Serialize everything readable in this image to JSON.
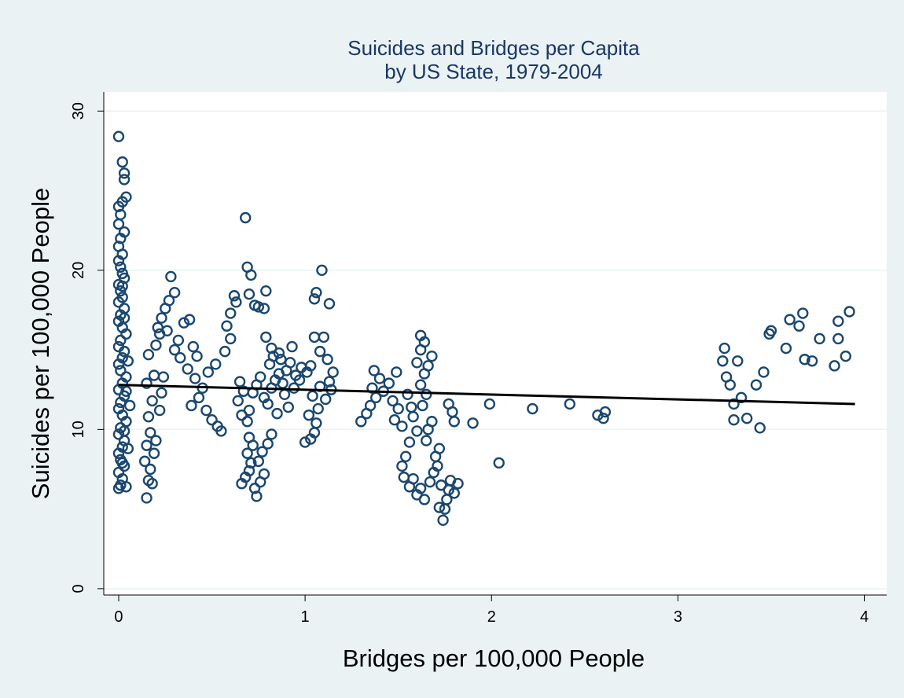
{
  "chart_data": {
    "type": "scatter",
    "title": [
      "Suicides and Bridges per Capita",
      "by US State, 1979-2004"
    ],
    "xlabel": "Bridges per 100,000 People",
    "ylabel": "Suicides per 100,000 People",
    "xlim": [
      -0.08,
      4.12
    ],
    "ylim": [
      -0.4,
      31.2
    ],
    "xticks": [
      0,
      1,
      2,
      3,
      4
    ],
    "yticks": [
      0,
      10,
      20,
      30
    ],
    "grid": "horizontal",
    "legend": "none",
    "colors": {
      "background": "#eaf2f3",
      "plot": "#ffffff",
      "marker": "#1a476f",
      "fit_line": "#000000",
      "grid": "#eaf2f3",
      "title": "#1a3765"
    },
    "fit_line": {
      "x": [
        0,
        3.95
      ],
      "y": [
        12.8,
        11.6
      ]
    },
    "series": [
      {
        "marker": "hollow-circle",
        "points": [
          [
            0.0,
            28.4
          ],
          [
            0.02,
            26.8
          ],
          [
            0.03,
            26.1
          ],
          [
            0.03,
            25.7
          ],
          [
            0.04,
            24.6
          ],
          [
            0.02,
            24.3
          ],
          [
            0.0,
            24.0
          ],
          [
            0.01,
            23.5
          ],
          [
            0.0,
            22.9
          ],
          [
            0.03,
            22.4
          ],
          [
            0.01,
            22.0
          ],
          [
            0.0,
            21.5
          ],
          [
            0.02,
            21.0
          ],
          [
            0.0,
            20.6
          ],
          [
            0.01,
            20.2
          ],
          [
            0.02,
            19.8
          ],
          [
            0.03,
            19.5
          ],
          [
            0.0,
            19.1
          ],
          [
            0.01,
            18.7
          ],
          [
            0.02,
            18.3
          ],
          [
            0.0,
            18.0
          ],
          [
            0.03,
            17.6
          ],
          [
            0.01,
            17.2
          ],
          [
            0.0,
            16.8
          ],
          [
            0.02,
            16.4
          ],
          [
            0.04,
            16.0
          ],
          [
            0.01,
            15.6
          ],
          [
            0.0,
            15.2
          ],
          [
            0.03,
            14.9
          ],
          [
            0.02,
            14.5
          ],
          [
            0.0,
            14.1
          ],
          [
            0.01,
            13.7
          ],
          [
            0.04,
            13.3
          ],
          [
            0.02,
            12.9
          ],
          [
            0.0,
            12.5
          ],
          [
            0.03,
            12.1
          ],
          [
            0.01,
            11.7
          ],
          [
            0.0,
            11.3
          ],
          [
            0.02,
            10.9
          ],
          [
            0.04,
            10.5
          ],
          [
            0.01,
            10.1
          ],
          [
            0.0,
            9.7
          ],
          [
            0.03,
            9.3
          ],
          [
            0.02,
            8.9
          ],
          [
            0.0,
            8.5
          ],
          [
            0.01,
            8.1
          ],
          [
            0.03,
            7.7
          ],
          [
            0.0,
            7.3
          ],
          [
            0.02,
            6.9
          ],
          [
            0.01,
            6.5
          ],
          [
            0.0,
            6.3
          ],
          [
            0.04,
            6.4
          ],
          [
            0.02,
            7.9
          ],
          [
            0.03,
            9.9
          ],
          [
            0.04,
            12.4
          ],
          [
            0.05,
            14.3
          ],
          [
            0.06,
            11.5
          ],
          [
            0.05,
            8.8
          ],
          [
            0.03,
            17.0
          ],
          [
            0.02,
            19.0
          ],
          [
            0.15,
            5.7
          ],
          [
            0.16,
            6.8
          ],
          [
            0.18,
            6.6
          ],
          [
            0.17,
            7.5
          ],
          [
            0.14,
            8.0
          ],
          [
            0.19,
            8.5
          ],
          [
            0.15,
            9.0
          ],
          [
            0.2,
            9.3
          ],
          [
            0.17,
            9.8
          ],
          [
            0.16,
            10.8
          ],
          [
            0.22,
            11.2
          ],
          [
            0.18,
            11.8
          ],
          [
            0.23,
            12.3
          ],
          [
            0.15,
            12.9
          ],
          [
            0.19,
            13.4
          ],
          [
            0.24,
            13.3
          ],
          [
            0.16,
            14.7
          ],
          [
            0.2,
            15.3
          ],
          [
            0.22,
            16.0
          ],
          [
            0.21,
            16.4
          ],
          [
            0.23,
            17.0
          ],
          [
            0.25,
            17.6
          ],
          [
            0.27,
            18.1
          ],
          [
            0.3,
            18.6
          ],
          [
            0.28,
            19.6
          ],
          [
            0.26,
            16.2
          ],
          [
            0.3,
            15.0
          ],
          [
            0.33,
            14.5
          ],
          [
            0.32,
            15.6
          ],
          [
            0.35,
            16.7
          ],
          [
            0.38,
            16.9
          ],
          [
            0.4,
            15.2
          ],
          [
            0.42,
            14.6
          ],
          [
            0.37,
            13.8
          ],
          [
            0.41,
            13.2
          ],
          [
            0.45,
            12.6
          ],
          [
            0.43,
            12.0
          ],
          [
            0.39,
            11.5
          ],
          [
            0.47,
            11.2
          ],
          [
            0.5,
            10.6
          ],
          [
            0.53,
            10.2
          ],
          [
            0.55,
            9.9
          ],
          [
            0.48,
            13.6
          ],
          [
            0.52,
            14.1
          ],
          [
            0.57,
            14.9
          ],
          [
            0.6,
            15.7
          ],
          [
            0.58,
            16.5
          ],
          [
            0.6,
            17.3
          ],
          [
            0.63,
            18.0
          ],
          [
            0.62,
            18.4
          ],
          [
            0.65,
            13.0
          ],
          [
            0.67,
            12.4
          ],
          [
            0.64,
            11.8
          ],
          [
            0.66,
            10.9
          ],
          [
            0.69,
            10.5
          ],
          [
            0.7,
            11.2
          ],
          [
            0.68,
            23.3
          ],
          [
            0.69,
            20.2
          ],
          [
            0.71,
            19.7
          ],
          [
            0.7,
            18.5
          ],
          [
            0.73,
            17.8
          ],
          [
            0.75,
            17.7
          ],
          [
            0.78,
            17.6
          ],
          [
            0.79,
            18.7
          ],
          [
            0.66,
            6.6
          ],
          [
            0.68,
            7.0
          ],
          [
            0.7,
            7.4
          ],
          [
            0.71,
            7.9
          ],
          [
            0.69,
            8.5
          ],
          [
            0.72,
            9.0
          ],
          [
            0.7,
            9.5
          ],
          [
            0.73,
            6.3
          ],
          [
            0.74,
            5.8
          ],
          [
            0.76,
            6.7
          ],
          [
            0.78,
            7.2
          ],
          [
            0.75,
            8.0
          ],
          [
            0.77,
            8.6
          ],
          [
            0.8,
            9.1
          ],
          [
            0.82,
            9.7
          ],
          [
            0.72,
            12.3
          ],
          [
            0.74,
            12.8
          ],
          [
            0.76,
            13.3
          ],
          [
            0.78,
            12.0
          ],
          [
            0.8,
            11.6
          ],
          [
            0.82,
            12.6
          ],
          [
            0.84,
            13.1
          ],
          [
            0.86,
            13.5
          ],
          [
            0.81,
            14.1
          ],
          [
            0.83,
            14.6
          ],
          [
            0.87,
            14.4
          ],
          [
            0.88,
            12.9
          ],
          [
            0.9,
            13.7
          ],
          [
            0.92,
            14.2
          ],
          [
            0.95,
            13.4
          ],
          [
            0.98,
            13.9
          ],
          [
            0.85,
            11.0
          ],
          [
            0.89,
            12.2
          ],
          [
            0.91,
            11.4
          ],
          [
            0.94,
            12.6
          ],
          [
            0.97,
            13.1
          ],
          [
            0.79,
            15.8
          ],
          [
            0.82,
            15.1
          ],
          [
            0.86,
            14.8
          ],
          [
            0.93,
            15.2
          ],
          [
            1.0,
            9.2
          ],
          [
            1.03,
            9.4
          ],
          [
            1.05,
            9.8
          ],
          [
            1.06,
            10.4
          ],
          [
            1.02,
            10.9
          ],
          [
            1.07,
            11.3
          ],
          [
            1.04,
            12.1
          ],
          [
            1.01,
            13.6
          ],
          [
            1.03,
            14.0
          ],
          [
            1.05,
            15.8
          ],
          [
            1.08,
            14.9
          ],
          [
            1.1,
            15.8
          ],
          [
            1.12,
            14.4
          ],
          [
            1.13,
            13.0
          ],
          [
            1.14,
            12.5
          ],
          [
            1.11,
            11.9
          ],
          [
            1.05,
            18.2
          ],
          [
            1.06,
            18.6
          ],
          [
            1.09,
            20.0
          ],
          [
            1.13,
            17.9
          ],
          [
            1.08,
            12.7
          ],
          [
            1.15,
            13.6
          ],
          [
            1.3,
            10.5
          ],
          [
            1.33,
            11.0
          ],
          [
            1.35,
            11.5
          ],
          [
            1.38,
            12.0
          ],
          [
            1.36,
            12.6
          ],
          [
            1.4,
            13.2
          ],
          [
            1.37,
            13.7
          ],
          [
            1.42,
            12.4
          ],
          [
            1.45,
            12.9
          ],
          [
            1.47,
            11.8
          ],
          [
            1.5,
            11.3
          ],
          [
            1.48,
            10.6
          ],
          [
            1.52,
            10.2
          ],
          [
            1.49,
            13.6
          ],
          [
            1.55,
            12.2
          ],
          [
            1.57,
            11.4
          ],
          [
            1.58,
            10.8
          ],
          [
            1.6,
            9.9
          ],
          [
            1.56,
            9.2
          ],
          [
            1.54,
            8.3
          ],
          [
            1.52,
            7.7
          ],
          [
            1.53,
            7.0
          ],
          [
            1.56,
            6.4
          ],
          [
            1.58,
            6.9
          ],
          [
            1.6,
            5.9
          ],
          [
            1.62,
            6.3
          ],
          [
            1.64,
            5.6
          ],
          [
            1.67,
            6.7
          ],
          [
            1.69,
            7.3
          ],
          [
            1.7,
            8.3
          ],
          [
            1.72,
            8.8
          ],
          [
            1.71,
            7.7
          ],
          [
            1.73,
            6.5
          ],
          [
            1.72,
            5.1
          ],
          [
            1.74,
            4.3
          ],
          [
            1.75,
            5.0
          ],
          [
            1.76,
            5.6
          ],
          [
            1.77,
            6.2
          ],
          [
            1.78,
            6.8
          ],
          [
            1.8,
            6.0
          ],
          [
            1.82,
            6.6
          ],
          [
            1.65,
            9.3
          ],
          [
            1.66,
            10.0
          ],
          [
            1.68,
            10.5
          ],
          [
            1.63,
            11.5
          ],
          [
            1.65,
            12.2
          ],
          [
            1.62,
            12.8
          ],
          [
            1.64,
            13.5
          ],
          [
            1.66,
            14.0
          ],
          [
            1.68,
            14.6
          ],
          [
            1.62,
            15.0
          ],
          [
            1.64,
            15.5
          ],
          [
            1.62,
            15.9
          ],
          [
            1.6,
            14.2
          ],
          [
            1.77,
            11.6
          ],
          [
            1.79,
            11.1
          ],
          [
            1.8,
            10.5
          ],
          [
            1.9,
            10.4
          ],
          [
            1.99,
            11.6
          ],
          [
            2.04,
            7.9
          ],
          [
            2.22,
            11.3
          ],
          [
            2.42,
            11.6
          ],
          [
            2.57,
            10.9
          ],
          [
            2.6,
            10.7
          ],
          [
            2.61,
            11.1
          ],
          [
            3.25,
            15.1
          ],
          [
            3.24,
            14.3
          ],
          [
            3.26,
            13.3
          ],
          [
            3.28,
            12.8
          ],
          [
            3.3,
            11.6
          ],
          [
            3.3,
            10.6
          ],
          [
            3.32,
            14.3
          ],
          [
            3.34,
            12.0
          ],
          [
            3.37,
            10.7
          ],
          [
            3.42,
            12.8
          ],
          [
            3.44,
            10.1
          ],
          [
            3.46,
            13.6
          ],
          [
            3.49,
            16.0
          ],
          [
            3.5,
            16.2
          ],
          [
            3.58,
            15.1
          ],
          [
            3.6,
            16.9
          ],
          [
            3.65,
            16.5
          ],
          [
            3.67,
            17.3
          ],
          [
            3.68,
            14.4
          ],
          [
            3.72,
            14.3
          ],
          [
            3.76,
            15.7
          ],
          [
            3.84,
            14.0
          ],
          [
            3.86,
            15.7
          ],
          [
            3.86,
            16.8
          ],
          [
            3.9,
            14.6
          ],
          [
            3.92,
            17.4
          ]
        ]
      }
    ]
  }
}
